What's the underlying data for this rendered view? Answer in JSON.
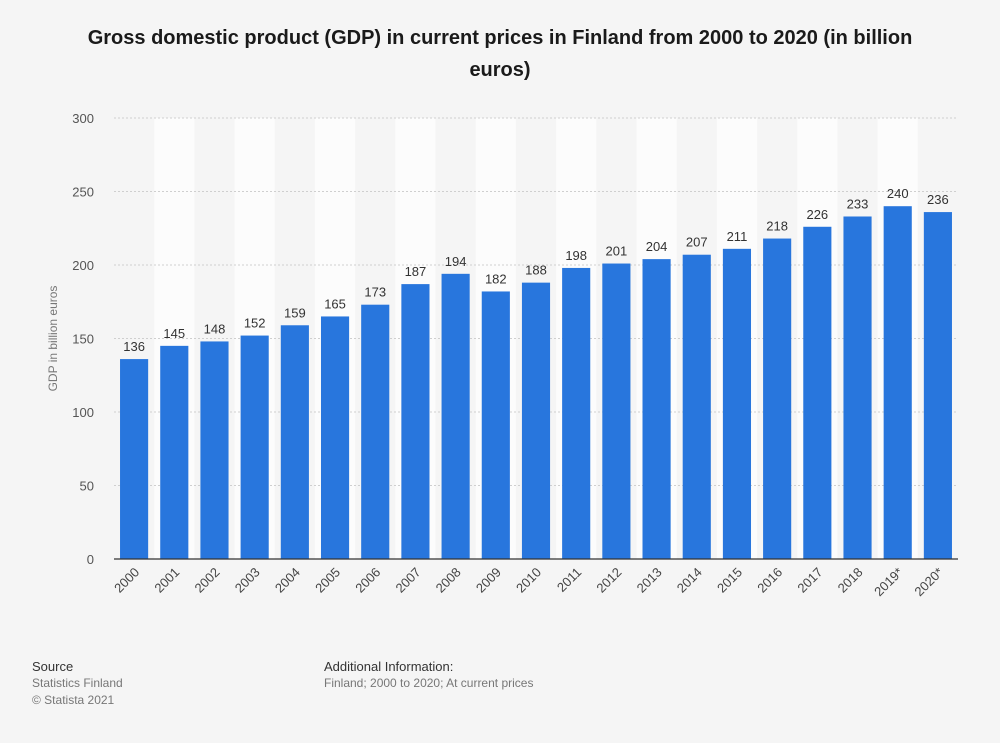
{
  "chart_data": {
    "type": "bar",
    "title": "Gross domestic product (GDP) in current prices in Finland from 2000 to 2020 (in billion euros)",
    "ylabel": "GDP in billion euros",
    "xlabel": "",
    "categories": [
      "2000",
      "2001",
      "2002",
      "2003",
      "2004",
      "2005",
      "2006",
      "2007",
      "2008",
      "2009",
      "2010",
      "2011",
      "2012",
      "2013",
      "2014",
      "2015",
      "2016",
      "2017",
      "2018",
      "2019*",
      "2020*"
    ],
    "values": [
      136,
      145,
      148,
      152,
      159,
      165,
      173,
      187,
      194,
      182,
      188,
      198,
      201,
      204,
      207,
      211,
      218,
      226,
      233,
      240,
      236
    ],
    "ylim": [
      0,
      300
    ],
    "yticks": [
      0,
      50,
      100,
      150,
      200,
      250,
      300
    ],
    "grid": true,
    "legend": "none",
    "bar_color": "#2876dd"
  },
  "footer": {
    "source_heading": "Source",
    "source_name": "Statistics Finland",
    "copyright": "© Statista 2021",
    "info_heading": "Additional Information:",
    "info_text": "Finland; 2000 to 2020; At current prices"
  }
}
